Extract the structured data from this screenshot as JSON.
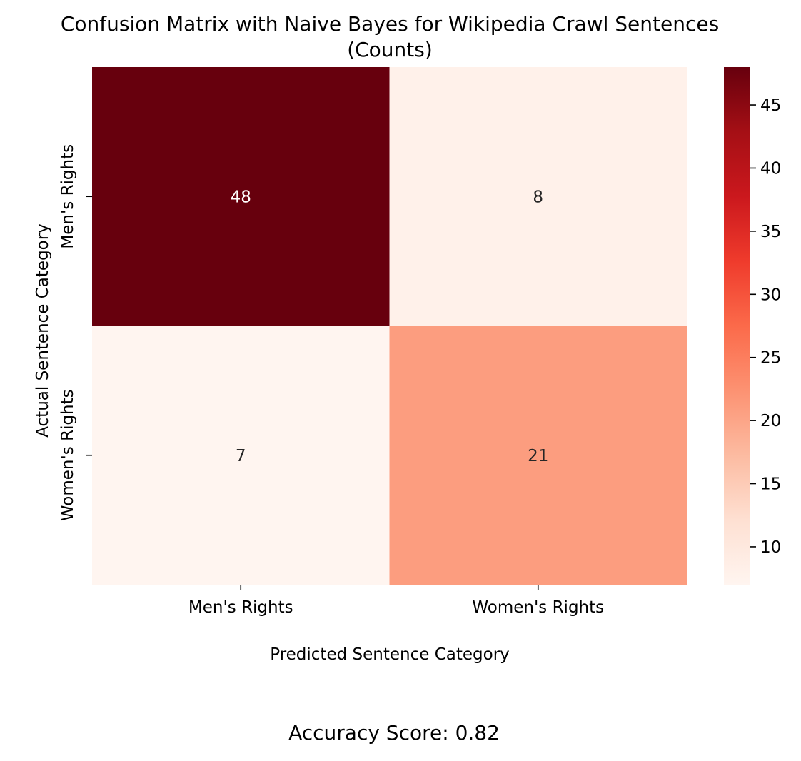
{
  "chart_data": {
    "type": "heatmap",
    "title_line1": "Confusion Matrix with Naive Bayes for Wikipedia Crawl Sentences",
    "title_line2": "(Counts)",
    "xlabel": "Predicted Sentence Category",
    "ylabel": "Actual Sentence Category",
    "x_categories": [
      "Men's Rights",
      "Women's Rights"
    ],
    "y_categories": [
      "Men's Rights",
      "Women's Rights"
    ],
    "matrix": [
      [
        48,
        8
      ],
      [
        7,
        21
      ]
    ],
    "colormap": "Reds",
    "colorbar": {
      "min": 7,
      "max": 48,
      "ticks": [
        10,
        15,
        20,
        25,
        30,
        35,
        40,
        45
      ]
    },
    "footer": "Accuracy Score: 0.82"
  },
  "colors": {
    "text_dark": "#262626",
    "text_light": "#ffffff",
    "axis": "#000000"
  }
}
